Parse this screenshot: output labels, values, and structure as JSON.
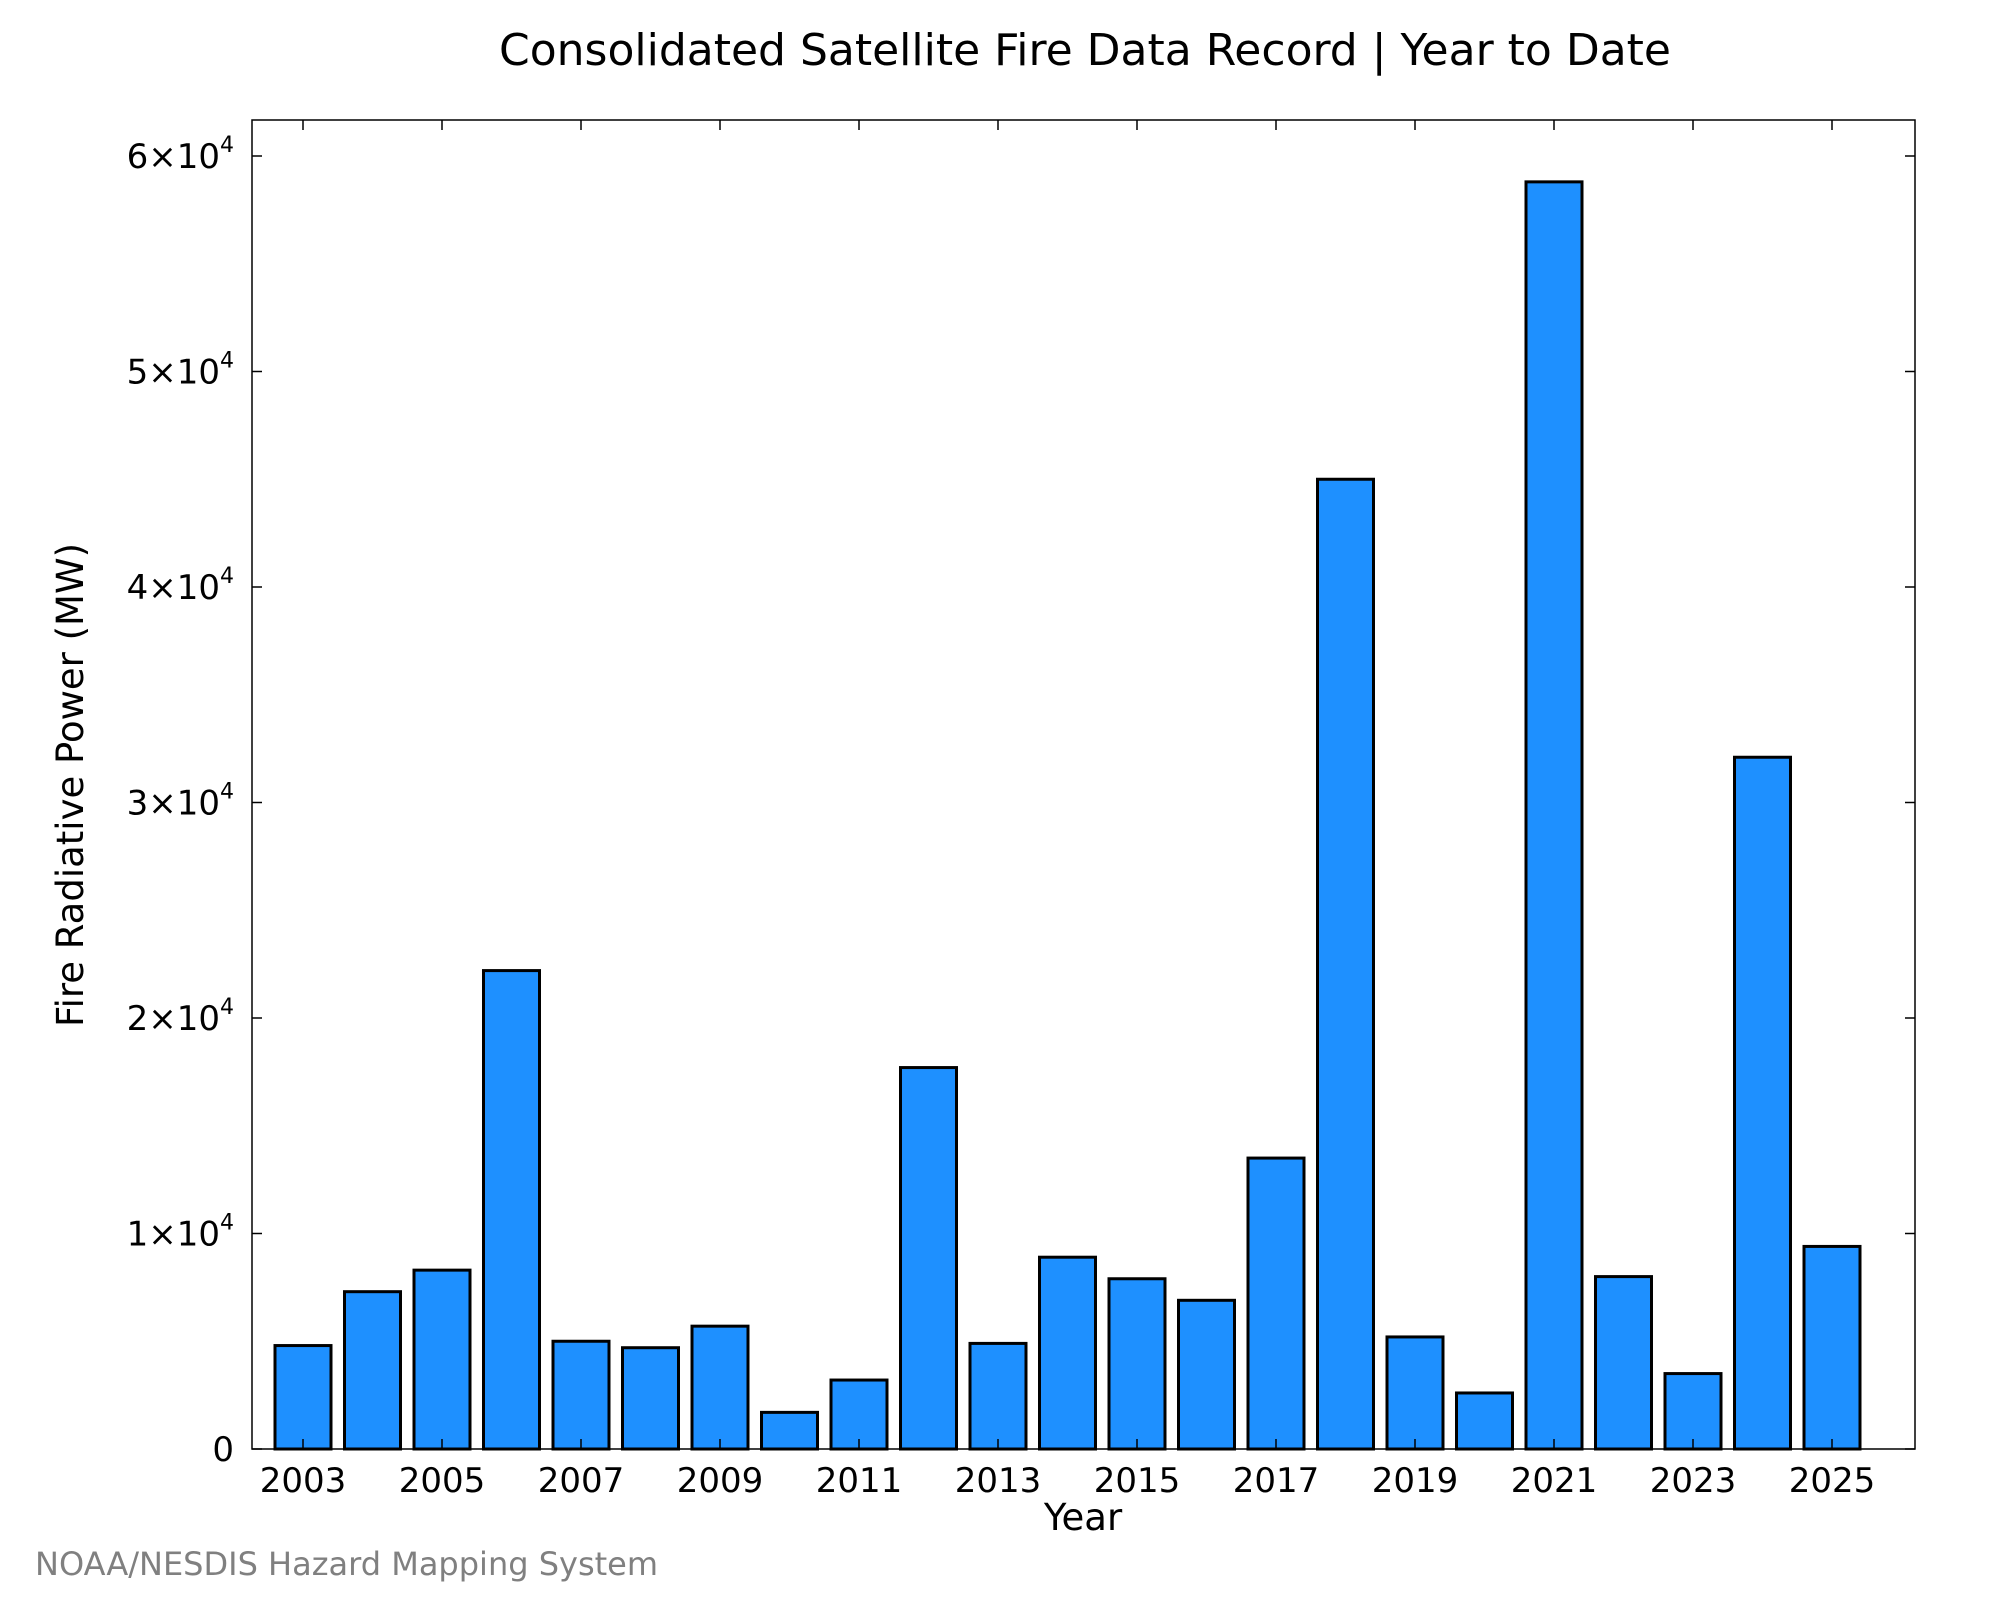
{
  "chart_data": {
    "type": "bar",
    "title": "Consolidated Satellite Fire Data Record | Year to Date",
    "xlabel": "Year",
    "ylabel": "Fire Radiative Power (MW)",
    "ylim": [
      0,
      61600
    ],
    "grid": false,
    "bar_color": "#1E90FF",
    "categories": [
      "2003",
      "2004",
      "2005",
      "2006",
      "2007",
      "2008",
      "2009",
      "2010",
      "2011",
      "2012",
      "2013",
      "2014",
      "2015",
      "2016",
      "2017",
      "2018",
      "2019",
      "2020",
      "2021",
      "2022",
      "2023",
      "2024",
      "2025"
    ],
    "values": [
      4800,
      7300,
      8300,
      22200,
      5000,
      4700,
      5700,
      1700,
      3200,
      17700,
      4900,
      8900,
      7900,
      6900,
      13500,
      45000,
      5200,
      2600,
      58800,
      8000,
      3500,
      32100,
      9400
    ],
    "x_tick_labels": [
      "2003",
      "2005",
      "2007",
      "2009",
      "2011",
      "2013",
      "2015",
      "2017",
      "2019",
      "2021",
      "2023",
      "2025"
    ],
    "y_ticks": [
      {
        "value": 0,
        "mantissa": "0",
        "exp": ""
      },
      {
        "value": 10000,
        "mantissa": "1×10",
        "exp": "4"
      },
      {
        "value": 20000,
        "mantissa": "2×10",
        "exp": "4"
      },
      {
        "value": 30000,
        "mantissa": "3×10",
        "exp": "4"
      },
      {
        "value": 40000,
        "mantissa": "4×10",
        "exp": "4"
      },
      {
        "value": 50000,
        "mantissa": "5×10",
        "exp": "4"
      },
      {
        "value": 60000,
        "mantissa": "6×10",
        "exp": "4"
      }
    ]
  },
  "credit": "NOAA/NESDIS Hazard Mapping System"
}
